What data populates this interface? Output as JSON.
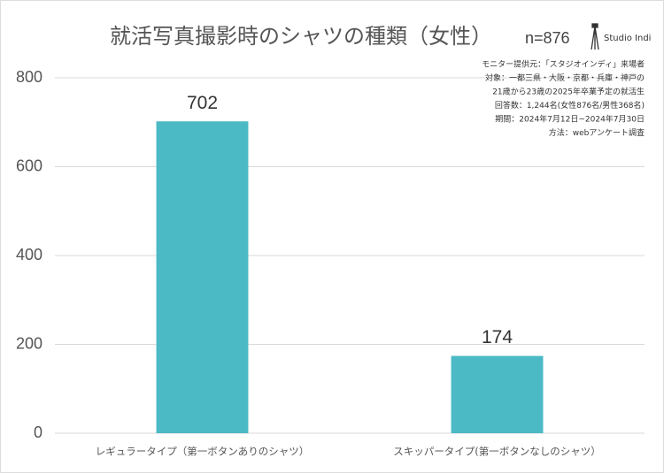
{
  "chart_data": {
    "type": "bar",
    "title": "就活写真撮影時のシャツの種類（女性）",
    "subtitle": "n=876",
    "brand": "Studio Indi",
    "notes": [
      "モニター提供元：「スタジオインディ」来場者",
      "対象：一都三県・大阪・京都・兵庫・神戸の",
      "21歳から23歳の2025年卒業予定の就活生",
      "回答数：1,244名(女性876名/男性368名)",
      "期間：2024年7月12日~2024年7月30日",
      "方法：webアンケート調査"
    ],
    "categories": [
      "レギュラータイプ（第一ボタンありのシャツ）",
      "スキッパータイプ(第一ボタンなしのシャツ）"
    ],
    "values": [
      702,
      174
    ],
    "color": "#4bbac5",
    "ylim": [
      0,
      800
    ],
    "yticks": [
      0,
      200,
      400,
      600,
      800
    ],
    "grid": true
  }
}
